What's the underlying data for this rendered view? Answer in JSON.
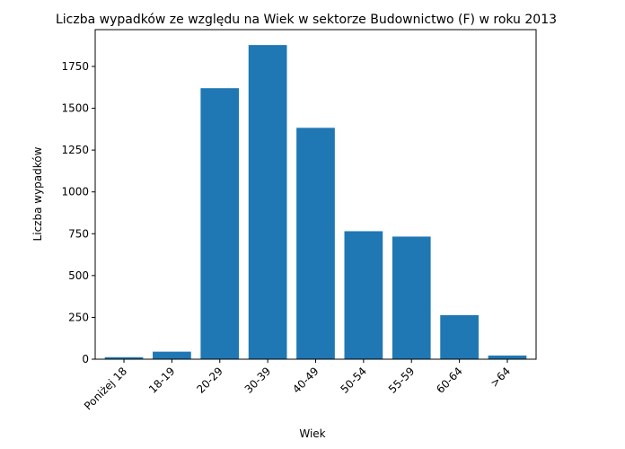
{
  "chart_data": {
    "type": "bar",
    "title": "Liczba wypadków ze względu na Wiek w sektorze Budownictwo (F)   w roku 2013",
    "xlabel": "Wiek",
    "ylabel": "Liczba wypadków",
    "categories": [
      "Poniżej 18",
      "18-19",
      "20-29",
      "30-39",
      "40-49",
      "50-54",
      "55-59",
      "60-64",
      ">64"
    ],
    "values": [
      12,
      45,
      1620,
      1878,
      1383,
      765,
      733,
      263,
      22
    ],
    "ylim": [
      0,
      1970
    ],
    "yticks": [
      0,
      250,
      500,
      750,
      1000,
      1250,
      1500,
      1750
    ],
    "bar_color": "#1f77b4",
    "grid": false,
    "legend": "none"
  }
}
